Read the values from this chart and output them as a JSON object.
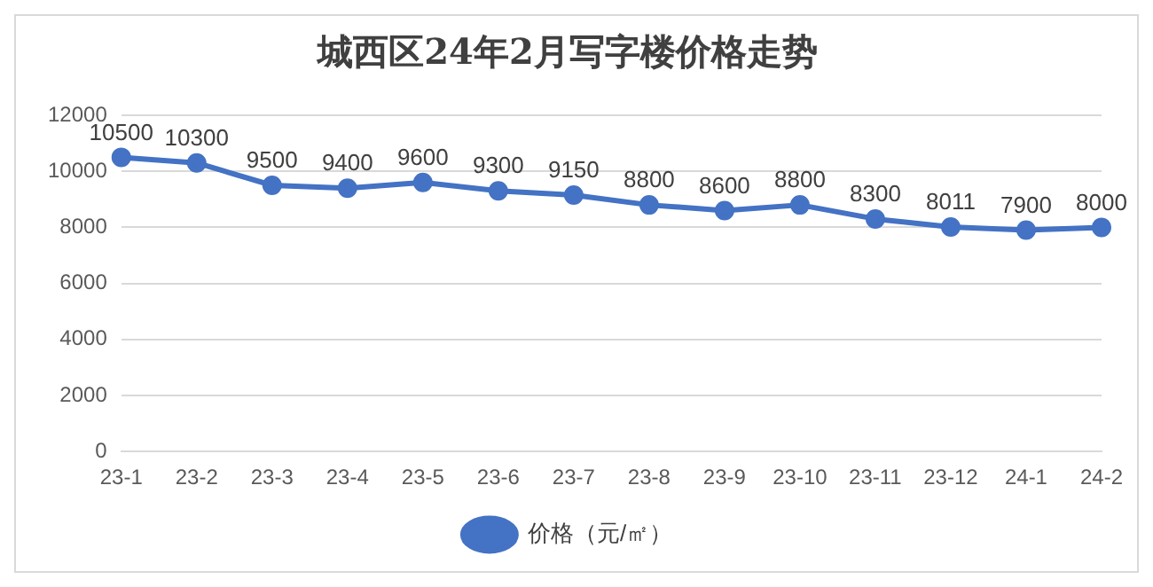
{
  "chart_data": {
    "type": "line",
    "title": "城西区24年2月写字楼价格走势",
    "categories": [
      "23-1",
      "23-2",
      "23-3",
      "23-4",
      "23-5",
      "23-6",
      "23-7",
      "23-8",
      "23-9",
      "23-10",
      "23-11",
      "23-12",
      "24-1",
      "24-2"
    ],
    "series": [
      {
        "name": "价格（元/㎡）",
        "color": "#4472c4",
        "values": [
          10500,
          10300,
          9500,
          9400,
          9600,
          9300,
          9150,
          8800,
          8600,
          8800,
          8300,
          8011,
          7900,
          8000
        ]
      }
    ],
    "ylim": [
      0,
      12000
    ],
    "yticks": [
      0,
      2000,
      4000,
      6000,
      8000,
      10000,
      12000
    ],
    "grid": "y",
    "legend": "bottom",
    "marker": "circle",
    "line_style": "solid",
    "data_labels": true
  }
}
